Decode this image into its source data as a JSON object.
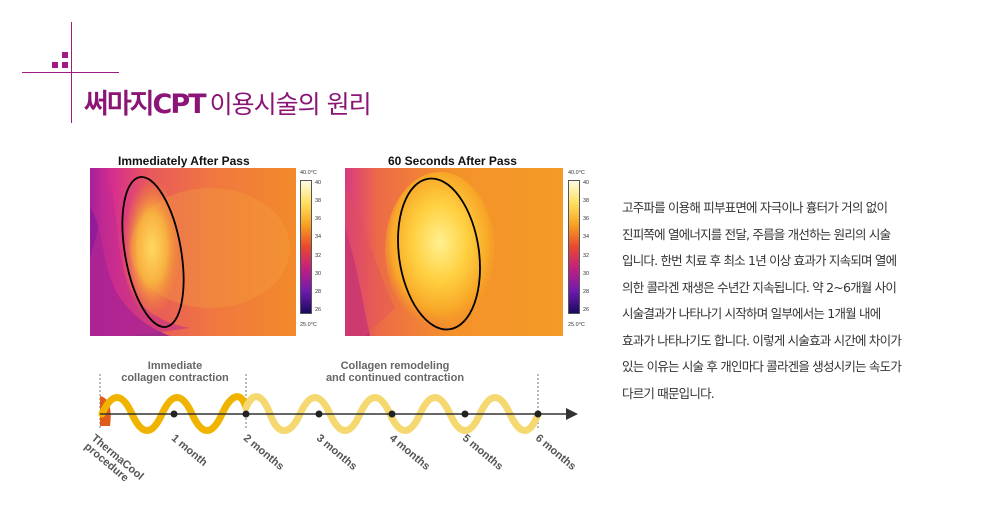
{
  "header": {
    "title_bold": "써마지CPT",
    "title_light": "이용시술의 원리",
    "accent_color": "#a01c84"
  },
  "thermal": {
    "left_title": "Immediately After Pass",
    "right_title": "60  Seconds  After Pass",
    "scale_top_label": "40.0°C",
    "scale_bottom_label": "25.0°C",
    "scale_ticks": [
      "40",
      "38",
      "36",
      "34",
      "32",
      "30",
      "28",
      "26"
    ]
  },
  "timeline": {
    "phase1_line1": "Immediate",
    "phase1_line2": "collagen contraction",
    "phase2_line1": "Collagen remodeling",
    "phase2_line2": "and continued contraction",
    "procedure_line1": "ThermaCool",
    "procedure_line2": "procedure",
    "months": [
      "1 month",
      "2 months",
      "3 months",
      "4 months",
      "5 months",
      "6 months"
    ],
    "wave_color_strong": "#f0b400",
    "wave_color_light": "#f5d870",
    "procedure_color": "#e05a1a"
  },
  "description": {
    "lines": [
      "고주파를 이용해 피부표면에 자극이나 흉터가 거의 없이",
      "진피쪽에 열에너지를 전달, 주름을 개선하는 원리의 시술",
      "입니다. 한번 치료 후 최소 1년 이상 효과가 지속되며 열에",
      "의한 콜라겐 재생은 수년간 지속됩니다.  약 2~6개월 사이",
      "시술결과가 나타나기 시작하며 일부에서는 1개월 내에",
      "효과가 나타나기도 합니다. 이렇게 시술효과 시간에 차이가",
      "있는 이유는 시술 후 개인마다 콜라겐을 생성시키는 속도가",
      "다르기 때문입니다."
    ]
  }
}
